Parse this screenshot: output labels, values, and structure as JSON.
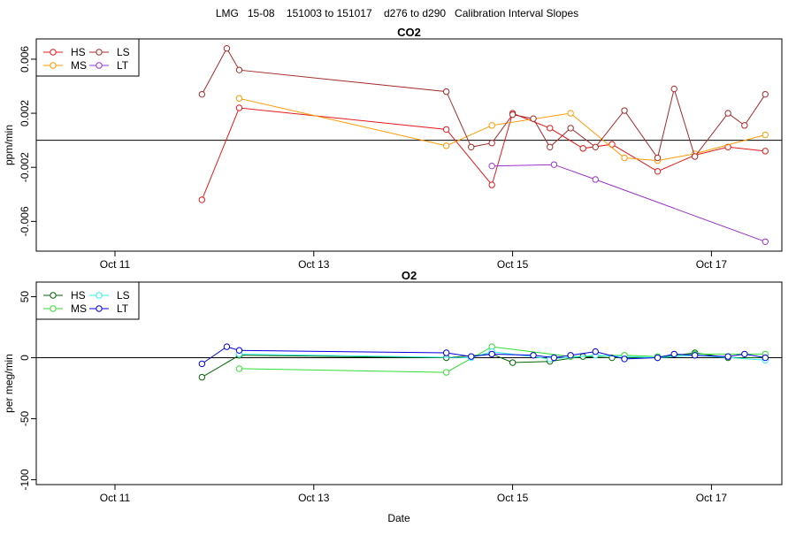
{
  "figure_title": "LMG   15-08    151003 to 151017    d276 to d290   Calibration Interval Slopes",
  "xlabel": "Date",
  "x_ticks": [
    {
      "value": "2015-10-11",
      "label": "Oct 11"
    },
    {
      "value": "2015-10-13",
      "label": "Oct 13"
    },
    {
      "value": "2015-10-15",
      "label": "Oct 15"
    },
    {
      "value": "2015-10-17",
      "label": "Oct 17"
    }
  ],
  "chart_data": [
    {
      "type": "line",
      "title": "CO2",
      "ylabel": "ppm/min",
      "xlim": [
        "2015-10-10T05:00",
        "2015-10-17T17:00"
      ],
      "ylim": [
        -0.0082,
        0.0075
      ],
      "yticks": [
        -0.006,
        -0.002,
        0.002,
        0.006
      ],
      "ytick_labels": [
        "-0.006",
        "-0.002",
        "0.002",
        "0.006"
      ],
      "hline": 0,
      "legend_position": "top-left",
      "series": [
        {
          "name": "HS",
          "color": "#e41a1c",
          "points": [
            [
              "2015-10-11T21:00",
              -0.0044
            ],
            [
              "2015-10-12T06:00",
              0.0024
            ],
            [
              "2015-10-14T08:00",
              0.0008
            ],
            [
              "2015-10-14T19:00",
              -0.0033
            ],
            [
              "2015-10-15T00:00",
              0.002
            ],
            [
              "2015-10-15T09:00",
              0.0009
            ],
            [
              "2015-10-15T17:00",
              -0.0006
            ],
            [
              "2015-10-16T00:00",
              -0.0003
            ],
            [
              "2015-10-16T11:00",
              -0.0023
            ],
            [
              "2015-10-16T20:00",
              -0.0011
            ],
            [
              "2015-10-17T04:00",
              -0.0005
            ],
            [
              "2015-10-17T13:00",
              -0.0008
            ]
          ]
        },
        {
          "name": "MS",
          "color": "#ff9900",
          "points": [
            [
              "2015-10-12T06:00",
              0.0031
            ],
            [
              "2015-10-14T08:00",
              -0.0004
            ],
            [
              "2015-10-14T19:00",
              0.0011
            ],
            [
              "2015-10-15T14:00",
              0.002
            ],
            [
              "2015-10-16T03:00",
              -0.0013
            ],
            [
              "2015-10-16T11:00",
              -0.0015
            ],
            [
              "2015-10-16T20:00",
              -0.001
            ],
            [
              "2015-10-17T13:00",
              0.0004
            ]
          ]
        },
        {
          "name": "LS",
          "color": "#a52a2a",
          "points": [
            [
              "2015-10-11T21:00",
              0.0034
            ],
            [
              "2015-10-12T03:00",
              0.0068
            ],
            [
              "2015-10-12T06:00",
              0.0052
            ],
            [
              "2015-10-14T08:00",
              0.0036
            ],
            [
              "2015-10-14T14:00",
              -0.0005
            ],
            [
              "2015-10-14T19:00",
              -0.0002
            ],
            [
              "2015-10-15T00:00",
              0.0019
            ],
            [
              "2015-10-15T05:00",
              0.0016
            ],
            [
              "2015-10-15T09:00",
              -0.0005
            ],
            [
              "2015-10-15T14:00",
              0.0009
            ],
            [
              "2015-10-15T20:00",
              -0.0005
            ],
            [
              "2015-10-16T03:00",
              0.0022
            ],
            [
              "2015-10-16T11:00",
              -0.0013
            ],
            [
              "2015-10-16T15:00",
              0.0038
            ],
            [
              "2015-10-16T20:00",
              -0.0012
            ],
            [
              "2015-10-17T04:00",
              0.002
            ],
            [
              "2015-10-17T08:00",
              0.0011
            ],
            [
              "2015-10-17T13:00",
              0.0034
            ]
          ]
        },
        {
          "name": "LT",
          "color": "#9933cc",
          "points": [
            [
              "2015-10-14T19:00",
              -0.0019
            ],
            [
              "2015-10-15T10:00",
              -0.0018
            ],
            [
              "2015-10-15T20:00",
              -0.0029
            ],
            [
              "2015-10-17T13:00",
              -0.0075
            ]
          ]
        }
      ]
    },
    {
      "type": "line",
      "title": "O2",
      "ylabel": "per meg/min",
      "xlim": [
        "2015-10-10T05:00",
        "2015-10-17T17:00"
      ],
      "ylim": [
        -104,
        62
      ],
      "yticks": [
        -100,
        -50,
        0,
        50
      ],
      "ytick_labels": [
        "-100",
        "-50",
        "0",
        "50"
      ],
      "hline": 0,
      "legend_position": "top-left",
      "series": [
        {
          "name": "HS",
          "color": "#006400",
          "points": [
            [
              "2015-10-11T21:00",
              -16
            ],
            [
              "2015-10-12T06:00",
              2
            ],
            [
              "2015-10-14T08:00",
              0
            ],
            [
              "2015-10-14T19:00",
              3
            ],
            [
              "2015-10-15T00:00",
              -4
            ],
            [
              "2015-10-15T09:00",
              -3
            ],
            [
              "2015-10-15T17:00",
              1
            ],
            [
              "2015-10-16T00:00",
              0
            ],
            [
              "2015-10-16T11:00",
              0
            ],
            [
              "2015-10-16T20:00",
              4
            ],
            [
              "2015-10-17T04:00",
              0
            ],
            [
              "2015-10-17T13:00",
              0
            ]
          ]
        },
        {
          "name": "MS",
          "color": "#33dd33",
          "points": [
            [
              "2015-10-12T06:00",
              -9
            ],
            [
              "2015-10-14T08:00",
              -12
            ],
            [
              "2015-10-14T19:00",
              9
            ],
            [
              "2015-10-15T14:00",
              1
            ],
            [
              "2015-10-16T03:00",
              2
            ],
            [
              "2015-10-16T11:00",
              1
            ],
            [
              "2015-10-16T20:00",
              3
            ],
            [
              "2015-10-17T13:00",
              3
            ]
          ]
        },
        {
          "name": "LS",
          "color": "#33eeee",
          "points": [
            [
              "2015-10-12T06:00",
              3
            ],
            [
              "2015-10-14T14:00",
              0
            ],
            [
              "2015-10-14T19:00",
              5
            ],
            [
              "2015-10-15T09:00",
              -1
            ],
            [
              "2015-10-15T20:00",
              2
            ],
            [
              "2015-10-16T11:00",
              0
            ],
            [
              "2015-10-16T20:00",
              2
            ],
            [
              "2015-10-17T13:00",
              -2
            ]
          ]
        },
        {
          "name": "LT",
          "color": "#0000dd",
          "points": [
            [
              "2015-10-11T21:00",
              -5
            ],
            [
              "2015-10-12T03:00",
              9
            ],
            [
              "2015-10-12T06:00",
              6
            ],
            [
              "2015-10-14T08:00",
              4
            ],
            [
              "2015-10-14T14:00",
              1
            ],
            [
              "2015-10-14T19:00",
              3
            ],
            [
              "2015-10-15T05:00",
              2
            ],
            [
              "2015-10-15T10:00",
              0
            ],
            [
              "2015-10-15T14:00",
              2
            ],
            [
              "2015-10-15T20:00",
              5
            ],
            [
              "2015-10-16T03:00",
              -1
            ],
            [
              "2015-10-16T11:00",
              0
            ],
            [
              "2015-10-16T15:00",
              3
            ],
            [
              "2015-10-16T20:00",
              2
            ],
            [
              "2015-10-17T04:00",
              1
            ],
            [
              "2015-10-17T08:00",
              3
            ],
            [
              "2015-10-17T13:00",
              0
            ]
          ]
        }
      ]
    }
  ]
}
